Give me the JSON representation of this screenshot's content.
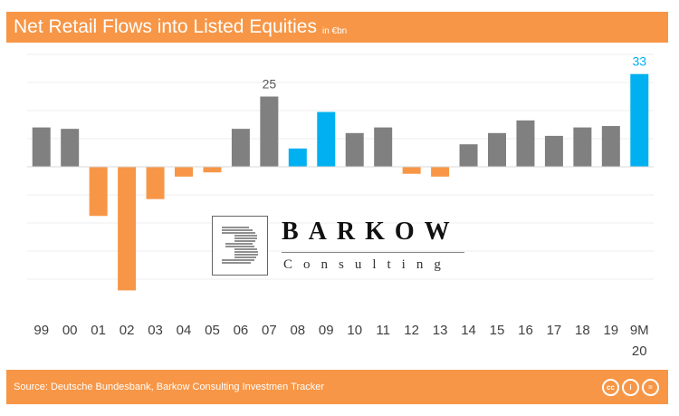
{
  "header": {
    "title": "Net Retail Flows into Listed Equities",
    "unit": "in €bn"
  },
  "footer": {
    "source": "Source: Deutsche Bundesbank, Barkow Consulting Investmen Tracker",
    "icons": [
      "creative-commons-icon",
      "attribution-icon",
      "no-derivatives-icon"
    ],
    "icon_glyphs": [
      "cc",
      "i",
      "="
    ]
  },
  "logo": {
    "name": "BARKOW",
    "subtitle": "Consulting"
  },
  "colors": {
    "orange": "#f79646",
    "gray": "#808080",
    "blue": "#00b0f0"
  },
  "chart_data": {
    "type": "bar",
    "categories": [
      "99",
      "00",
      "01",
      "02",
      "03",
      "04",
      "05",
      "06",
      "07",
      "08",
      "09",
      "10",
      "11",
      "12",
      "13",
      "14",
      "15",
      "16",
      "17",
      "18",
      "19",
      "9M 20"
    ],
    "values": [
      14,
      13.5,
      -17.5,
      -44,
      -11.5,
      -3.5,
      -2,
      13.5,
      25,
      6.5,
      19.5,
      12,
      14,
      -2.5,
      -3.5,
      8,
      12,
      16.5,
      11,
      14,
      14.5,
      33
    ],
    "bar_colors": [
      "gray",
      "gray",
      "orange",
      "orange",
      "orange",
      "orange",
      "orange",
      "gray",
      "gray",
      "blue",
      "blue",
      "gray",
      "gray",
      "orange",
      "orange",
      "gray",
      "gray",
      "gray",
      "gray",
      "gray",
      "gray",
      "blue"
    ],
    "data_labels": [
      {
        "index": 8,
        "text": "25",
        "color": "gray"
      },
      {
        "index": 21,
        "text": "33",
        "color": "blue"
      }
    ],
    "ylim": [
      -45,
      40
    ],
    "gridlines": [
      -40,
      -30,
      -20,
      -10,
      0,
      10,
      20,
      30,
      40
    ],
    "grid": true,
    "legend": "none"
  }
}
